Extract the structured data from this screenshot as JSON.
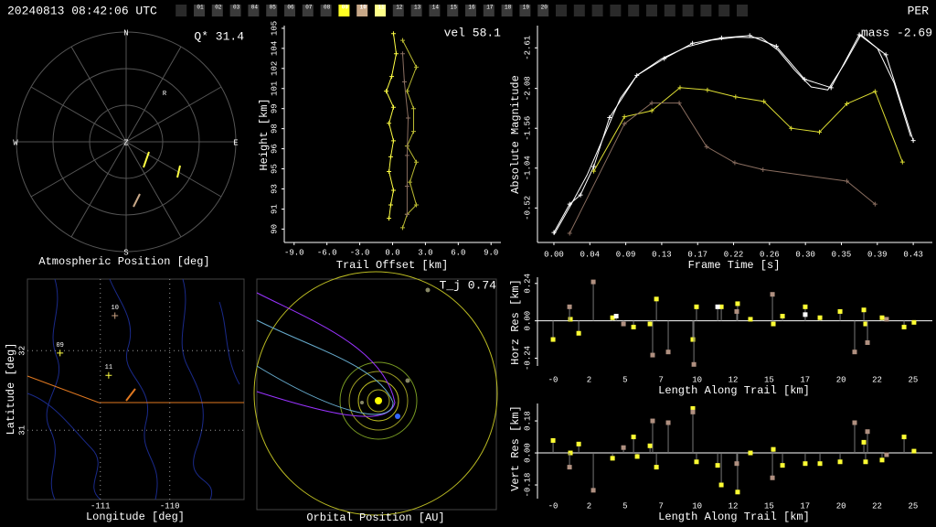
{
  "header": {
    "title": "20240813 08:42:06 UTC",
    "shower": "PER",
    "stations": [
      {
        "label": "01",
        "color": "#3a3a3a"
      },
      {
        "label": "02",
        "color": "#3a3a3a"
      },
      {
        "label": "03",
        "color": "#3a3a3a"
      },
      {
        "label": "04",
        "color": "#3a3a3a"
      },
      {
        "label": "05",
        "color": "#3a3a3a"
      },
      {
        "label": "06",
        "color": "#3a3a3a"
      },
      {
        "label": "07",
        "color": "#3a3a3a"
      },
      {
        "label": "08",
        "color": "#3a3a3a"
      },
      {
        "label": "09",
        "color": "#ffff22"
      },
      {
        "label": "10",
        "color": "#c8a888"
      },
      {
        "label": "11",
        "color": "#ffff88"
      },
      {
        "label": "12",
        "color": "#3a3a3a"
      },
      {
        "label": "13",
        "color": "#3a3a3a"
      },
      {
        "label": "14",
        "color": "#3a3a3a"
      },
      {
        "label": "15",
        "color": "#3a3a3a"
      },
      {
        "label": "16",
        "color": "#3a3a3a"
      },
      {
        "label": "17",
        "color": "#3a3a3a"
      },
      {
        "label": "18",
        "color": "#3a3a3a"
      },
      {
        "label": "19",
        "color": "#3a3a3a"
      },
      {
        "label": "20",
        "color": "#3a3a3a"
      }
    ]
  },
  "chart_data": [
    {
      "type": "polar",
      "title": "Atmospheric Position [deg]",
      "annotation": "Q* 31.4",
      "directions": [
        "N",
        "E",
        "S",
        "W"
      ],
      "zenith": "Z",
      "marker_label": "R"
    },
    {
      "type": "line",
      "xlabel": "Trail Offset [km]",
      "ylabel": "Height [km]",
      "annotation": "vel 58.1",
      "xlim": [
        -9.9,
        9.9
      ],
      "ylim": [
        89,
        105.2
      ],
      "xticks": [
        {
          "value": -9,
          "label": "-9.0"
        },
        {
          "value": -6,
          "label": "-6.0"
        },
        {
          "value": -3,
          "label": "-3.0"
        },
        {
          "value": 0,
          "label": "0.0"
        },
        {
          "value": 3,
          "label": "3.0"
        },
        {
          "value": 6,
          "label": "6.0"
        },
        {
          "value": 9,
          "label": "9.0"
        }
      ],
      "yticks": [
        90,
        {
          "value": 91.49,
          "label": "91"
        },
        93,
        {
          "value": 94.5,
          "label": "95"
        },
        96,
        {
          "value": 97.5,
          "label": "98"
        },
        99,
        {
          "value": 100.5,
          "label": "101"
        },
        102,
        {
          "value": 103.5,
          "label": "104"
        },
        105
      ],
      "series": [
        {
          "color": "#ffff44",
          "marker": "+",
          "x": [
            0.08,
            0.33,
            -0.08,
            -0.58,
            0.08,
            -0.33,
            0.08,
            -0.17,
            -0.33,
            0.08,
            -0.17,
            -0.33
          ],
          "values": [
            104.6,
            103.1,
            101.4,
            100.3,
            99.1,
            97.9,
            96.6,
            95.4,
            94.3,
            92.9,
            91.8,
            90.8
          ]
        },
        {
          "color": "#bbbb33",
          "marker": "+",
          "x": [
            0.92,
            2.17,
            1.33,
            1.92,
            1.92,
            1.33,
            2.17,
            1.58,
            2.17,
            1.33,
            0.92
          ],
          "values": [
            104.1,
            102.1,
            100.3,
            99.0,
            97.3,
            96.2,
            95.0,
            93.5,
            91.8,
            91.1,
            90.1
          ]
        },
        {
          "color": "#8a6e60",
          "marker": "+",
          "x": [
            0.92,
            1.08,
            1.42,
            1.33,
            1.33,
            1.33
          ],
          "values": [
            103.1,
            101.0,
            98.3,
            95.5,
            93.2,
            91.1
          ]
        }
      ]
    },
    {
      "type": "line",
      "xlabel": "Frame Time [s]",
      "ylabel": "Absolute Magnitude",
      "annotation": "mass -2.69",
      "xlim": [
        -0.0198,
        0.456
      ],
      "ylim": [
        -0.07,
        -2.9
      ],
      "xticks": [
        {
          "value": 0,
          "label": "0.00"
        },
        {
          "value": 0.0433,
          "label": "0.04"
        },
        {
          "value": 0.0866,
          "label": "0.09"
        },
        {
          "value": 0.1299,
          "label": "0.13"
        },
        {
          "value": 0.1732,
          "label": "0.17"
        },
        {
          "value": 0.2165,
          "label": "0.22"
        },
        {
          "value": 0.2598,
          "label": "0.26"
        },
        {
          "value": 0.3031,
          "label": "0.30"
        },
        {
          "value": 0.3464,
          "label": "0.35"
        },
        {
          "value": 0.3897,
          "label": "0.39"
        },
        {
          "value": 0.433,
          "label": "0.43"
        }
      ],
      "yticks": [
        -0.52,
        -1.04,
        -1.56,
        -2.08,
        -2.61
      ],
      "series": [
        {
          "color": "#ffffff",
          "marker": "none",
          "x": [
            0,
            0.02,
            0.04,
            0.06,
            0.08,
            0.1,
            0.13,
            0.16,
            0.19,
            0.22,
            0.25,
            0.27,
            0.29,
            0.31,
            0.33,
            0.35,
            0.37,
            0.39,
            0.41,
            0.43
          ],
          "values": [
            -0.17,
            -0.55,
            -0.95,
            -1.45,
            -1.95,
            -2.25,
            -2.47,
            -2.62,
            -2.71,
            -2.75,
            -2.74,
            -2.58,
            -2.32,
            -2.1,
            -2.06,
            -2.4,
            -2.78,
            -2.6,
            -2.15,
            -1.45
          ]
        },
        {
          "color": "#ffffff",
          "marker": "+",
          "x": [
            0,
            0.019,
            0.032,
            0.048,
            0.067,
            0.1,
            0.133,
            0.167,
            0.202,
            0.236,
            0.268,
            0.302,
            0.334,
            0.368,
            0.4,
            0.433
          ],
          "values": [
            -0.2,
            -0.57,
            -0.69,
            -1.06,
            -1.7,
            -2.25,
            -2.47,
            -2.67,
            -2.74,
            -2.77,
            -2.63,
            -2.2,
            -2.09,
            -2.78,
            -2.52,
            -1.4
          ]
        },
        {
          "color": "#dddd33",
          "marker": "+",
          "x": [
            0.048,
            0.085,
            0.118,
            0.152,
            0.185,
            0.219,
            0.253,
            0.286,
            0.32,
            0.353,
            0.387,
            0.42
          ],
          "values": [
            -1.0,
            -1.71,
            -1.79,
            -2.09,
            -2.06,
            -1.97,
            -1.91,
            -1.56,
            -1.51,
            -1.88,
            -2.04,
            -1.12
          ]
        },
        {
          "color": "#8a6e60",
          "marker": "+",
          "x": [
            0.019,
            0.085,
            0.118,
            0.151,
            0.184,
            0.218,
            0.252,
            0.353,
            0.387
          ],
          "values": [
            -0.19,
            -1.62,
            -1.89,
            -1.89,
            -1.32,
            -1.11,
            -1.02,
            -0.87,
            -0.57
          ]
        }
      ]
    },
    {
      "type": "map",
      "xlabel": "Longitude [deg]",
      "ylabel": "Latitude [deg]",
      "xlim": [
        -112.05,
        -108.93
      ],
      "ylim": [
        30.13,
        32.9
      ],
      "xticks": [
        -111,
        -110
      ],
      "yticks": [
        31,
        32
      ],
      "grid": true,
      "points": [
        {
          "label": "09",
          "color": "#ffff44",
          "x": -111.58,
          "y": 31.97
        },
        {
          "label": "10",
          "color": "#c8a080",
          "x": -110.79,
          "y": 32.44
        },
        {
          "label": "11",
          "color": "#ffff44",
          "x": -110.88,
          "y": 31.69
        }
      ]
    },
    {
      "type": "orbit",
      "title": "Orbital Position [AU]",
      "annotation": "T_j 0.74"
    },
    {
      "type": "stem",
      "xlabel": "Length Along Trail [km]",
      "ylabel": "Horz Res [km]",
      "xlim": [
        -1.07,
        26.02
      ],
      "ylim": [
        -0.29,
        0.28
      ],
      "xticks": [
        {
          "value": 0,
          "label": "-0"
        },
        {
          "value": 2.47,
          "label": "2"
        },
        {
          "value": 4.94,
          "label": "5"
        },
        {
          "value": 7.41,
          "label": "7"
        },
        {
          "value": 9.88,
          "label": "10"
        },
        {
          "value": 12.35,
          "label": "12"
        },
        {
          "value": 14.82,
          "label": "15"
        },
        {
          "value": 17.29,
          "label": "17"
        },
        {
          "value": 19.76,
          "label": "20"
        },
        {
          "value": 22.23,
          "label": "22"
        },
        {
          "value": 24.7,
          "label": "25"
        }
      ],
      "yticks": [
        0.24,
        {
          "value": 0,
          "label": "0.00"
        },
        -0.24
      ],
      "zero_line": true,
      "series": [
        {
          "color": "#ffff33",
          "x": [
            0.0,
            1.19,
            1.76,
            4.08,
            5.52,
            6.65,
            7.09,
            9.59,
            9.84,
            11.54,
            12.66,
            13.54,
            15.11,
            15.74,
            17.3,
            18.31,
            19.69,
            21.32,
            21.44,
            22.57,
            24.08,
            24.76
          ],
          "values": [
            -0.12,
            0.01,
            -0.08,
            0.02,
            -0.04,
            -0.02,
            0.14,
            -0.12,
            0.09,
            0.09,
            0.11,
            0.01,
            -0.02,
            0.03,
            0.09,
            0.02,
            0.06,
            0.07,
            -0.02,
            0.02,
            -0.04,
            -0.01
          ]
        },
        {
          "color": "#b09080",
          "x": [
            1.13,
            2.76,
            4.83,
            6.83,
            7.9,
            9.66,
            12.6,
            15.05,
            20.69,
            21.57,
            22.88
          ],
          "values": [
            0.09,
            0.25,
            -0.02,
            -0.22,
            -0.2,
            -0.28,
            0.06,
            0.17,
            -0.2,
            -0.14,
            0.01
          ]
        },
        {
          "color": "#ffffff",
          "x": [
            4.33,
            11.29,
            17.3
          ],
          "values": [
            0.03,
            0.09,
            0.04
          ]
        }
      ]
    },
    {
      "type": "stem",
      "xlabel": "Length Along Trail [km]",
      "ylabel": "Vert Res [km]",
      "xlim": [
        -1.07,
        26.02
      ],
      "ylim": [
        -0.257,
        0.278
      ],
      "xticks": [
        {
          "value": 0,
          "label": "-0"
        },
        {
          "value": 2.47,
          "label": "2"
        },
        {
          "value": 4.94,
          "label": "5"
        },
        {
          "value": 7.41,
          "label": "7"
        },
        {
          "value": 9.88,
          "label": "10"
        },
        {
          "value": 12.35,
          "label": "12"
        },
        {
          "value": 14.82,
          "label": "15"
        },
        {
          "value": 17.29,
          "label": "17"
        },
        {
          "value": 19.76,
          "label": "20"
        },
        {
          "value": 22.23,
          "label": "22"
        },
        {
          "value": 24.7,
          "label": "25"
        }
      ],
      "yticks": [
        0.18,
        {
          "value": 0,
          "label": "0.00"
        },
        -0.18
      ],
      "zero_line": true,
      "series": [
        {
          "color": "#ffff33",
          "x": [
            0.0,
            1.19,
            1.76,
            4.08,
            5.52,
            5.77,
            6.65,
            7.09,
            9.59,
            9.84,
            11.54,
            11.29,
            12.66,
            13.54,
            15.11,
            15.74,
            17.3,
            18.31,
            19.69,
            21.32,
            21.44,
            22.57,
            24.08,
            24.76
          ],
          "values": [
            0.07,
            0.0,
            0.05,
            -0.03,
            0.09,
            -0.02,
            0.04,
            -0.08,
            0.25,
            -0.05,
            -0.18,
            -0.07,
            -0.22,
            0.0,
            0.02,
            -0.07,
            -0.06,
            -0.06,
            -0.05,
            0.06,
            -0.05,
            -0.04,
            0.09,
            0.01
          ]
        },
        {
          "color": "#b09080",
          "x": [
            1.13,
            2.76,
            4.83,
            6.83,
            7.9,
            9.59,
            12.6,
            15.05,
            20.69,
            21.57,
            22.88
          ],
          "values": [
            -0.08,
            -0.21,
            0.03,
            0.18,
            0.17,
            0.23,
            -0.06,
            -0.14,
            0.17,
            0.12,
            -0.01
          ]
        }
      ]
    }
  ]
}
